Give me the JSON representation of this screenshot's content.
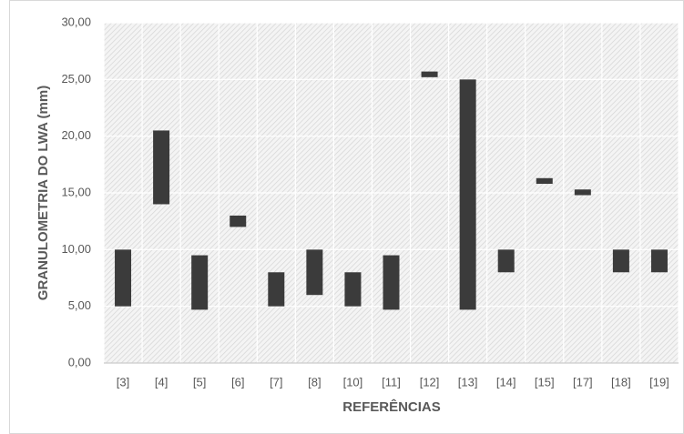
{
  "chart_data": {
    "type": "floating-bar",
    "y_label": "GRANULOMETRIA DO LWA (mm)",
    "x_label": "REFERÊNCIAS",
    "categories": [
      "[3]",
      "[4]",
      "[5]",
      "[6]",
      "[7]",
      "[8]",
      "[10]",
      "[11]",
      "[12]",
      "[13]",
      "[14]",
      "[15]",
      "[17]",
      "[18]",
      "[19]"
    ],
    "low": [
      5,
      14,
      4.7,
      12,
      5,
      6,
      5,
      4.7,
      25.2,
      4.7,
      8,
      15.8,
      14.8,
      8,
      8
    ],
    "high": [
      10,
      20.5,
      9.5,
      13,
      8,
      10,
      8,
      9.5,
      25.7,
      25,
      10,
      16.3,
      15.3,
      10,
      10
    ],
    "color": "#3b3b3b",
    "ylim": [
      0,
      30
    ],
    "yticks": [
      {
        "value": 0,
        "label": "0,00"
      },
      {
        "value": 5,
        "label": "5,00"
      },
      {
        "value": 10,
        "label": "10,00"
      },
      {
        "value": 15,
        "label": "15,00"
      },
      {
        "value": 20,
        "label": "20,00"
      },
      {
        "value": 25,
        "label": "25,00"
      },
      {
        "value": 30,
        "label": "30,00"
      }
    ],
    "grid": true
  }
}
